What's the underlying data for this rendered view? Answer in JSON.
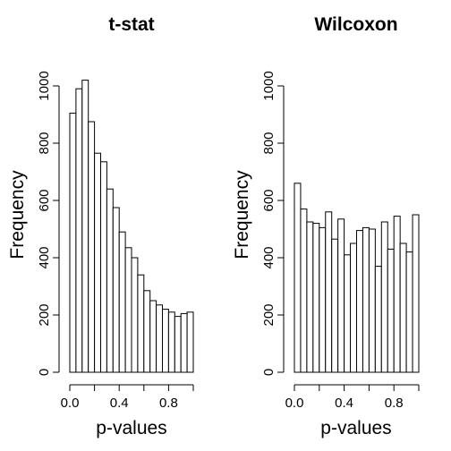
{
  "chart_data": [
    {
      "type": "bar",
      "title": "t-stat",
      "xlabel": "p-values",
      "ylabel": "Frequency",
      "bin_width": 0.05,
      "x": [
        0.025,
        0.075,
        0.125,
        0.175,
        0.225,
        0.275,
        0.325,
        0.375,
        0.425,
        0.475,
        0.525,
        0.575,
        0.625,
        0.675,
        0.725,
        0.775,
        0.825,
        0.875,
        0.925,
        0.975
      ],
      "values": [
        905,
        990,
        1020,
        875,
        765,
        735,
        640,
        575,
        490,
        435,
        400,
        340,
        285,
        250,
        235,
        220,
        210,
        195,
        205,
        210
      ],
      "xlim": [
        0,
        1
      ],
      "ylim": [
        0,
        1000
      ],
      "xticks": [
        "0.0",
        "0.4",
        "0.8"
      ],
      "xtick_values": [
        0,
        0.4,
        0.8
      ],
      "yticks": [
        "0",
        "200",
        "400",
        "600",
        "800",
        "1000"
      ],
      "ytick_values": [
        0,
        200,
        400,
        600,
        800,
        1000
      ],
      "grid": false
    },
    {
      "type": "bar",
      "title": "Wilcoxon",
      "xlabel": "p-values",
      "ylabel": "Frequency",
      "bin_width": 0.05,
      "x": [
        0.025,
        0.075,
        0.125,
        0.175,
        0.225,
        0.275,
        0.325,
        0.375,
        0.425,
        0.475,
        0.525,
        0.575,
        0.625,
        0.675,
        0.725,
        0.775,
        0.825,
        0.875,
        0.925,
        0.975
      ],
      "values": [
        660,
        570,
        525,
        520,
        505,
        560,
        465,
        535,
        410,
        450,
        495,
        505,
        500,
        370,
        525,
        430,
        545,
        450,
        420,
        550
      ],
      "xlim": [
        0,
        1
      ],
      "ylim": [
        0,
        1000
      ],
      "xticks": [
        "0.0",
        "0.4",
        "0.8"
      ],
      "xtick_values": [
        0,
        0.4,
        0.8
      ],
      "yticks": [
        "0",
        "200",
        "400",
        "600",
        "800",
        "1000"
      ],
      "ytick_values": [
        0,
        200,
        400,
        600,
        800,
        1000
      ],
      "grid": false
    }
  ]
}
